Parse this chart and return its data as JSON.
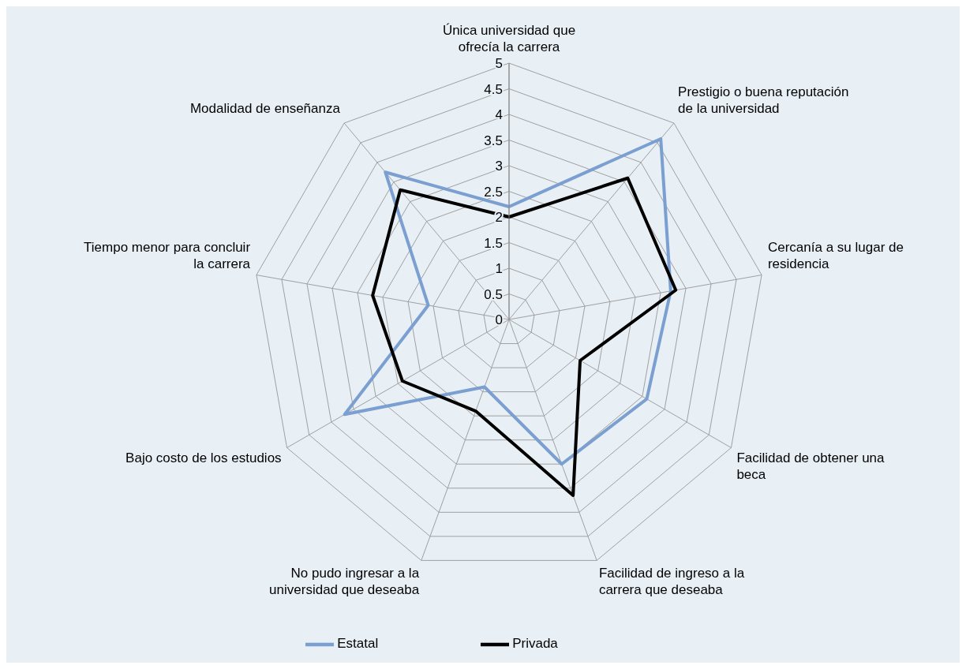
{
  "chart_data": {
    "type": "radar",
    "categories": [
      "Única universidad que ofrecía la carrera",
      "Prestigio o buena reputación de la universidad",
      "Cercanía a su lugar de residencia",
      "Facilidad de obtener una beca",
      "Facilidad de ingreso a la carrera que deseaba",
      "No pudo ingresar a la universidad que deseaba",
      "Bajo costo de los estudios",
      "Tiempo menor para concluir la carrera",
      "Modalidad de enseñanza"
    ],
    "series": [
      {
        "name": "Estatal",
        "color": "#7a9fd0",
        "values": [
          2.2,
          4.6,
          3.2,
          3.1,
          3.0,
          1.4,
          3.7,
          1.6,
          3.75
        ]
      },
      {
        "name": "Privada",
        "color": "#000000",
        "values": [
          2.0,
          3.6,
          3.3,
          1.6,
          3.65,
          1.9,
          2.4,
          2.7,
          3.3
        ]
      }
    ],
    "ylim": [
      0,
      5
    ],
    "yticks": [
      0,
      0.5,
      1,
      1.5,
      2,
      2.5,
      3,
      3.5,
      4,
      4.5,
      5
    ],
    "grid": true,
    "legend": "bottom",
    "marker": "none"
  }
}
